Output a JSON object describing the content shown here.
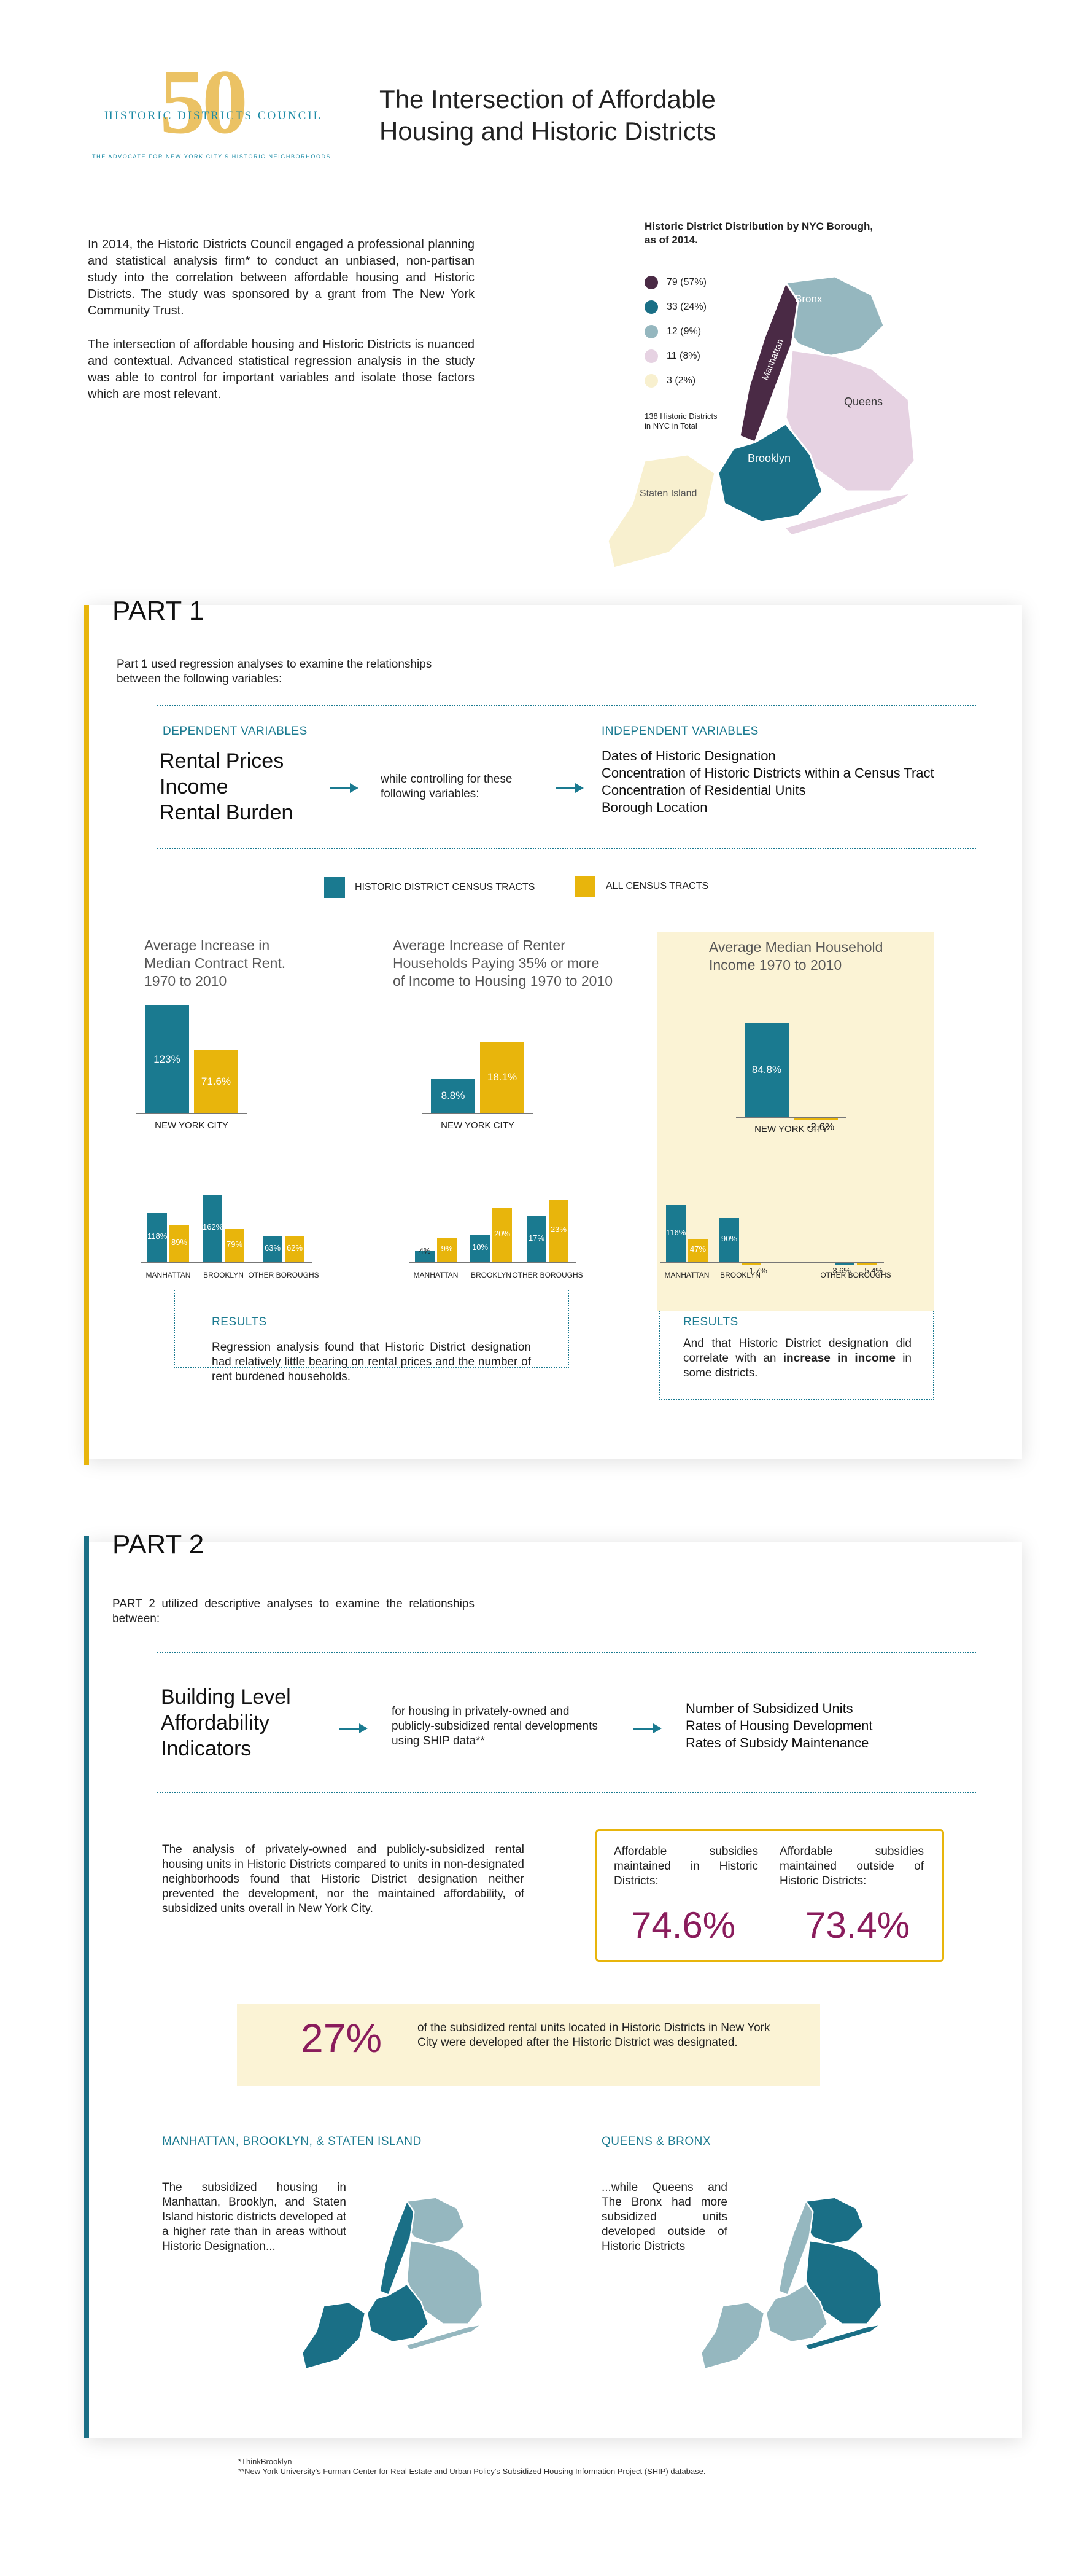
{
  "header": {
    "logo_number": "50",
    "logo_name": "HISTORIC DISTRICTS COUNCIL",
    "logo_tagline": "THE ADVOCATE FOR NEW YORK CITY'S HISTORIC NEIGHBORHOODS",
    "title_line1": "The Intersection of Affordable",
    "title_line2": "Housing and Historic Districts"
  },
  "intro": {
    "p1": "In 2014, the Historic Districts Council engaged a professional planning and statistical analysis firm* to conduct an unbiased, non-partisan study into the correlation between affordable housing and Historic Districts. The study was sponsored by a grant from The New York Community Trust.",
    "p2": "The intersection of affordable housing and Historic Districts is nuanced and contextual. Advanced statistical regression analysis in the study was able to control for important variables and isolate those factors which are most relevant."
  },
  "map": {
    "title": "Historic District Distribution by NYC Borough, as of 2014.",
    "legend": [
      {
        "label": "79 (57%)",
        "color": "#4a2a45"
      },
      {
        "label": "33 (24%)",
        "color": "#1a6f86"
      },
      {
        "label": "12 (9%)",
        "color": "#95b7bf"
      },
      {
        "label": "11 (8%)",
        "color": "#e6d2e2"
      },
      {
        "label": "3 (2%)",
        "color": "#f8f0cf"
      }
    ],
    "total_note": "138 Historic Districts in NYC in Total",
    "boroughs": {
      "bronx": "Bronx",
      "manhattan": "Manhattan",
      "queens": "Queens",
      "brooklyn": "Brooklyn",
      "staten": "Staten Island"
    }
  },
  "part1": {
    "title": "PART 1",
    "intro": "Part 1 used regression analyses to examine the relationships between the following variables:",
    "dep_label": "DEPENDENT VARIABLES",
    "dep_vars": [
      "Rental Prices",
      "Income",
      "Rental Burden"
    ],
    "controlling": "while controlling for these following variables:",
    "indep_label": "INDEPENDENT VARIABLES",
    "indep_vars": [
      "Dates of Historic Designation",
      "Concentration of Historic Districts within a Census Tract",
      "Concentration of Residential Units",
      "Borough Location"
    ],
    "legend_hd": "HISTORIC DISTRICT CENSUS TRACTS",
    "legend_all": "ALL CENSUS TRACTS",
    "colors": {
      "hd": "#1a7a90",
      "all": "#e8b50c"
    },
    "charts": [
      {
        "title": "Average Increase in Median Contract Rent. 1970 to 2010",
        "nyc": {
          "label": "NEW YORK CITY",
          "hd": "123%",
          "all": "71.6%"
        },
        "boroughs": [
          {
            "label": "MANHATTAN",
            "hd": "118%",
            "all": "89%"
          },
          {
            "label": "BROOKLYN",
            "hd": "162%",
            "all": "79%"
          },
          {
            "label": "OTHER BOROUGHS",
            "hd": "63%",
            "all": "62%"
          }
        ]
      },
      {
        "title": "Average Increase of Renter Households Paying 35% or more of Income to Housing 1970 to 2010",
        "nyc": {
          "label": "NEW YORK CITY",
          "hd": "8.8%",
          "all": "18.1%"
        },
        "boroughs": [
          {
            "label": "MANHATTAN",
            "hd": "4%",
            "all": "9%"
          },
          {
            "label": "BROOKLYN",
            "hd": "10%",
            "all": "20%"
          },
          {
            "label": "OTHER BOROUGHS",
            "hd": "17%",
            "all": "23%"
          }
        ]
      },
      {
        "title": "Average Median Household Income 1970 to 2010",
        "nyc": {
          "label": "NEW YORK CITY",
          "hd": "84.8%",
          "all": "-2.6%"
        },
        "boroughs": [
          {
            "label": "MANHATTAN",
            "hd": "116%",
            "all": "47%"
          },
          {
            "label": "BROOKLYN",
            "hd": "90%",
            "all": "-1.7%"
          },
          {
            "label": "OTHER BOROUGHS",
            "hd": "-3.6%",
            "all": "-5.4%"
          }
        ]
      }
    ],
    "results_label": "RESULTS",
    "results1": "Regression analysis found that Historic District designation had relatively little bearing on rental prices and the number of rent burdened households.",
    "results2_a": "And that Historic District designation did correlate with an ",
    "results2_b": "increase in income",
    "results2_c": " in some districts."
  },
  "part2": {
    "title": "PART 2",
    "intro": "PART 2 utilized descriptive analyses to examine the relationships between:",
    "indicator": [
      "Building Level",
      "Affordability",
      "Indicators"
    ],
    "for_housing": "for housing in privately-owned and publicly-subsidized rental developments using SHIP data**",
    "outcomes": [
      "Number of Subsidized Units",
      "Rates of Housing Development",
      "Rates of Subsidy Maintenance"
    ],
    "analysis": "The analysis of privately-owned and publicly-subsidized rental housing units in Historic Districts compared to units in non-designated neighborhoods found that Historic District designation neither prevented the development, nor the maintained affordability, of subsidized units overall in New York City.",
    "maint_in_label": "Affordable subsidies maintained in Historic Districts:",
    "maint_in_value": "74.6%",
    "maint_out_label": "Affordable subsidies maintained outside of Historic Districts:",
    "maint_out_value": "73.4%",
    "pct27": "27%",
    "pct27_text": "of the subsidized rental units located in Historic Districts in New York City were developed after the Historic District was designated.",
    "mbs_label": "MANHATTAN, BROOKLYN, & STATEN ISLAND",
    "mbs_text": "The subsidized housing in Manhattan, Brooklyn, and Staten Island historic districts developed at a higher rate than in areas without Historic Designation...",
    "qb_label": "QUEENS & BRONX",
    "qb_text": "...while Queens and The Bronx had more subsidized units developed outside of Historic Districts"
  },
  "footnotes": {
    "f1": "*ThinkBrooklyn",
    "f2": "**New York University's Furman Center for Real Estate and Urban Policy's Subsidized Housing Information Project (SHIP) database."
  }
}
